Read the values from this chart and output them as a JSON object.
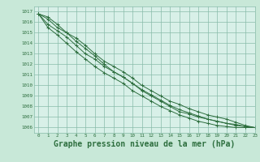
{
  "background_color": "#c8e8d8",
  "plot_background": "#d8f0e8",
  "grid_color": "#88bbaa",
  "line_color": "#2d6e3e",
  "xlabel": "Graphe pression niveau de la mer (hPa)",
  "xlabel_fontsize": 7,
  "ylim": [
    1005.5,
    1017.5
  ],
  "xlim": [
    -0.5,
    23
  ],
  "yticks": [
    1006,
    1007,
    1008,
    1009,
    1010,
    1011,
    1012,
    1013,
    1014,
    1015,
    1016,
    1017
  ],
  "xticks": [
    0,
    1,
    2,
    3,
    4,
    5,
    6,
    7,
    8,
    9,
    10,
    11,
    12,
    13,
    14,
    15,
    16,
    17,
    18,
    19,
    20,
    21,
    22,
    23
  ],
  "series": [
    [
      1016.8,
      1016.5,
      1015.8,
      1015.0,
      1014.2,
      1013.5,
      1012.8,
      1012.0,
      1011.3,
      1010.8,
      1010.2,
      1009.5,
      1009.0,
      1008.5,
      1008.0,
      1007.5,
      1007.3,
      1007.0,
      1006.8,
      1006.6,
      1006.4,
      1006.3,
      1006.1,
      1006.0
    ],
    [
      1016.8,
      1016.3,
      1015.5,
      1015.0,
      1014.5,
      1013.8,
      1013.0,
      1012.3,
      1011.8,
      1011.3,
      1010.7,
      1010.0,
      1009.5,
      1009.0,
      1008.5,
      1008.2,
      1007.8,
      1007.5,
      1007.2,
      1007.0,
      1006.8,
      1006.5,
      1006.2,
      1006.0
    ],
    [
      1016.8,
      1015.8,
      1015.2,
      1014.6,
      1013.8,
      1013.0,
      1012.5,
      1011.8,
      1011.3,
      1010.8,
      1010.2,
      1009.6,
      1009.1,
      1008.6,
      1008.1,
      1007.7,
      1007.4,
      1007.1,
      1006.8,
      1006.6,
      1006.4,
      1006.2,
      1006.1,
      1006.0
    ],
    [
      1016.8,
      1015.5,
      1014.8,
      1014.0,
      1013.2,
      1012.5,
      1011.8,
      1011.2,
      1010.7,
      1010.2,
      1009.5,
      1009.0,
      1008.5,
      1008.0,
      1007.6,
      1007.2,
      1006.9,
      1006.6,
      1006.4,
      1006.2,
      1006.1,
      1006.0,
      1006.0,
      1006.0
    ]
  ]
}
